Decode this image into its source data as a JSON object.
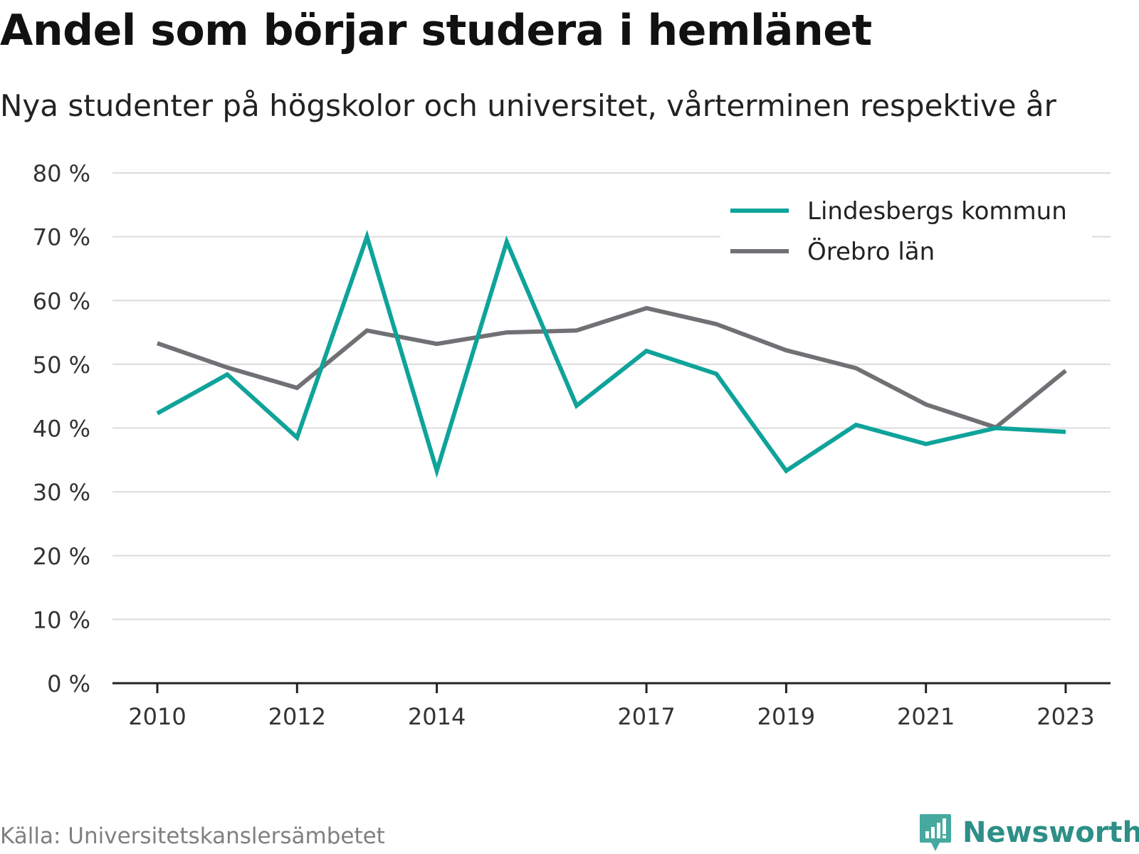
{
  "header": {
    "title": "Andel som börjar studera i hemlänet",
    "subtitle": "Nya studenter på högskolor och universitet, vårterminen respektive år"
  },
  "footer": {
    "source": "Källa: Universitetskanslersämbetet",
    "brand": "Newsworthy",
    "brand_icon": "chart-logo-icon"
  },
  "colors": {
    "lindesberg": "#0fa39a",
    "orebro": "#707075",
    "grid": "#dcdcdc",
    "axis": "#222222",
    "brand": "#2d8f87"
  },
  "chart_data": {
    "type": "line",
    "title": "Andel som börjar studera i hemlänet",
    "subtitle": "Nya studenter på högskolor och universitet, vårterminen respektive år",
    "x": [
      2010,
      2011,
      2012,
      2013,
      2014,
      2015,
      2016,
      2017,
      2018,
      2019,
      2020,
      2021,
      2022,
      2023
    ],
    "x_tick_labels": [
      "2010",
      "2012",
      "2014",
      "2017",
      "2019",
      "2021",
      "2023"
    ],
    "y_tick_labels": [
      "0 %",
      "10 %",
      "20 %",
      "30 %",
      "40 %",
      "50 %",
      "60 %",
      "70 %",
      "80 %"
    ],
    "ylim": [
      0,
      80
    ],
    "grid": true,
    "legend_position": "top-right",
    "series": [
      {
        "name": "Lindesbergs kommun",
        "color": "#0fa39a",
        "values": [
          42.3,
          48.4,
          38.5,
          70.0,
          33.3,
          69.2,
          43.5,
          52.1,
          48.5,
          33.3,
          40.5,
          37.5,
          40.0,
          39.4
        ]
      },
      {
        "name": "Örebro län",
        "color": "#707075",
        "values": [
          53.3,
          49.5,
          46.3,
          55.3,
          53.2,
          55.0,
          55.3,
          58.8,
          56.3,
          52.2,
          49.4,
          43.7,
          40.1,
          49.0
        ]
      }
    ]
  }
}
